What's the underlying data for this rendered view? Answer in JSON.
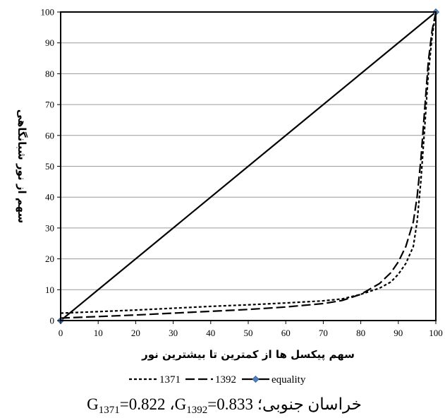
{
  "chart_data": {
    "type": "line",
    "xlabel": "سهم پیکسل ها از کمترین تا بیشترین نور",
    "ylabel": "سهم از نور شبانگاهی",
    "xlim": [
      0,
      100
    ],
    "ylim": [
      0,
      100
    ],
    "x_ticks": [
      "0",
      "10",
      "20",
      "30",
      "40",
      "50",
      "60",
      "70",
      "80",
      "90",
      "100"
    ],
    "y_ticks": [
      "0",
      "10",
      "20",
      "30",
      "40",
      "50",
      "60",
      "70",
      "80",
      "90",
      "100"
    ],
    "grid": "horizontal",
    "legend_position": "bottom",
    "series": [
      {
        "name": "1371",
        "style": "short-dash",
        "color": "#000000",
        "points": [
          [
            0,
            2.4
          ],
          [
            10,
            2.9
          ],
          [
            20,
            3.4
          ],
          [
            30,
            4.0
          ],
          [
            40,
            4.6
          ],
          [
            50,
            5.1
          ],
          [
            60,
            5.7
          ],
          [
            70,
            6.4
          ],
          [
            75,
            7.0
          ],
          [
            80,
            8.5
          ],
          [
            85,
            10.5
          ],
          [
            88,
            12.5
          ],
          [
            90,
            15.0
          ],
          [
            92,
            18.5
          ],
          [
            94,
            24.0
          ],
          [
            95,
            32.0
          ],
          [
            96,
            45.0
          ],
          [
            97,
            62.0
          ],
          [
            98,
            80.0
          ],
          [
            99,
            92.0
          ],
          [
            100,
            100
          ]
        ]
      },
      {
        "name": "1392",
        "style": "long-dash",
        "color": "#000000",
        "points": [
          [
            0,
            0.8
          ],
          [
            10,
            1.3
          ],
          [
            20,
            1.8
          ],
          [
            30,
            2.4
          ],
          [
            40,
            3.0
          ],
          [
            50,
            3.6
          ],
          [
            60,
            4.4
          ],
          [
            70,
            5.5
          ],
          [
            75,
            6.5
          ],
          [
            80,
            8.5
          ],
          [
            85,
            12.0
          ],
          [
            88,
            15.5
          ],
          [
            90,
            19.0
          ],
          [
            92,
            24.0
          ],
          [
            94,
            32.0
          ],
          [
            95,
            40.0
          ],
          [
            96,
            52.0
          ],
          [
            97,
            68.0
          ],
          [
            98,
            84.0
          ],
          [
            99,
            94.0
          ],
          [
            100,
            100
          ]
        ]
      },
      {
        "name": "equality",
        "style": "solid-diamond",
        "color": "#000000",
        "marker_color": "#4F81BD",
        "points": [
          [
            0,
            0
          ],
          [
            100,
            100
          ]
        ]
      }
    ],
    "caption": "خراسان جنوبی؛ G1371=0.822 ،G1392=0.833"
  }
}
